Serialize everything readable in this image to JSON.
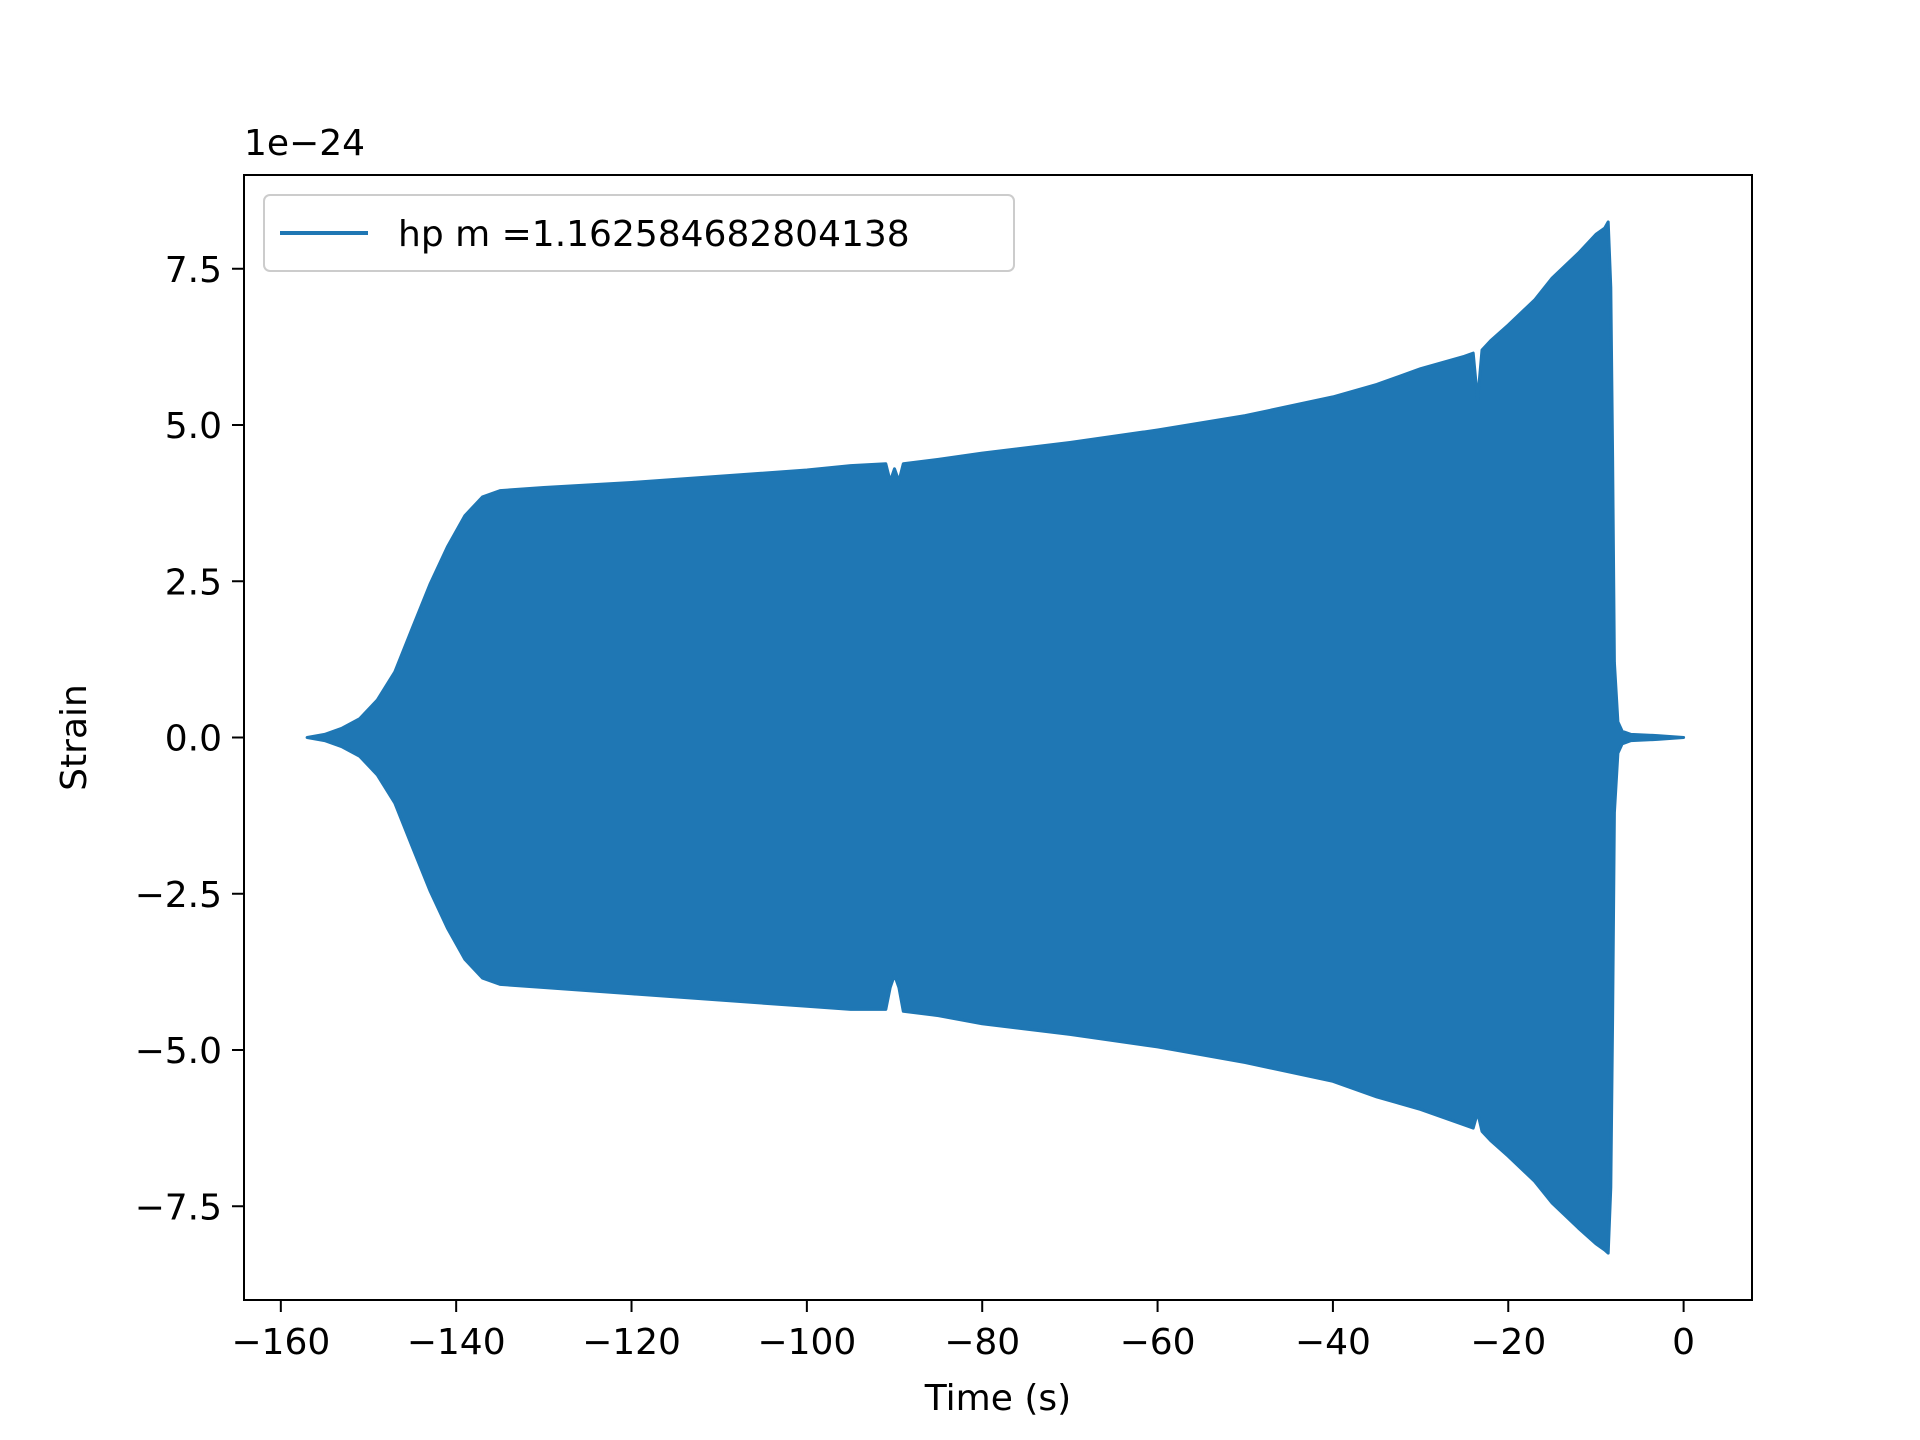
{
  "chart_data": {
    "type": "area",
    "title": "",
    "xlabel": "Time (s)",
    "ylabel": "Strain",
    "y_offset_label": "1e−24",
    "y_scale": 1e-24,
    "xlim": [
      -164.2,
      7.8
    ],
    "ylim": [
      -9.0,
      9.0
    ],
    "x_ticks": [
      -160,
      -140,
      -120,
      -100,
      -80,
      -60,
      -40,
      -20,
      0
    ],
    "x_tick_labels": [
      "−160",
      "−140",
      "−120",
      "−100",
      "−80",
      "−60",
      "−40",
      "−20",
      "0"
    ],
    "y_ticks": [
      -7.5,
      -5.0,
      -2.5,
      0.0,
      2.5,
      5.0,
      7.5
    ],
    "y_tick_labels": [
      "−7.5",
      "−5.0",
      "−2.5",
      "0.0",
      "2.5",
      "5.0",
      "7.5"
    ],
    "grid": false,
    "legend_position": "top-left",
    "series": [
      {
        "name": "hp m =1.162584682804138",
        "color": "#1f77b4",
        "envelope": {
          "x": [
            -157,
            -155,
            -153,
            -151,
            -149,
            -147,
            -145,
            -143,
            -141,
            -139,
            -137,
            -135,
            -130,
            -120,
            -110,
            -100,
            -95,
            -91,
            -90.5,
            -90,
            -89.5,
            -89,
            -85,
            -80,
            -70,
            -60,
            -50,
            -40,
            -35,
            -30,
            -25,
            -24,
            -23.5,
            -23,
            -22,
            -20,
            -17,
            -15,
            -12,
            -10,
            -9,
            -8.6,
            -8.3,
            -8.1,
            -7.9,
            -7.5,
            -7,
            -6,
            -3,
            0
          ],
          "upper": [
            0.0,
            0.05,
            0.15,
            0.3,
            0.6,
            1.05,
            1.75,
            2.45,
            3.05,
            3.55,
            3.85,
            3.95,
            4.0,
            4.08,
            4.18,
            4.28,
            4.35,
            4.38,
            4.1,
            4.3,
            4.1,
            4.38,
            4.45,
            4.55,
            4.72,
            4.92,
            5.15,
            5.45,
            5.65,
            5.9,
            6.1,
            6.15,
            5.4,
            6.2,
            6.35,
            6.6,
            7.0,
            7.35,
            7.75,
            8.05,
            8.15,
            8.25,
            7.2,
            4.5,
            1.2,
            0.25,
            0.1,
            0.05,
            0.03,
            0.0
          ],
          "lower": [
            0.0,
            -0.05,
            -0.15,
            -0.3,
            -0.6,
            -1.05,
            -1.75,
            -2.45,
            -3.05,
            -3.55,
            -3.85,
            -3.95,
            -4.0,
            -4.1,
            -4.2,
            -4.3,
            -4.35,
            -4.35,
            -4.0,
            -3.8,
            -4.0,
            -4.38,
            -4.45,
            -4.58,
            -4.75,
            -4.95,
            -5.2,
            -5.5,
            -5.75,
            -5.95,
            -6.2,
            -6.25,
            -6.0,
            -6.3,
            -6.45,
            -6.7,
            -7.1,
            -7.45,
            -7.85,
            -8.1,
            -8.2,
            -8.25,
            -7.2,
            -4.5,
            -1.2,
            -0.25,
            -0.1,
            -0.05,
            -0.03,
            0.0
          ]
        }
      }
    ]
  }
}
